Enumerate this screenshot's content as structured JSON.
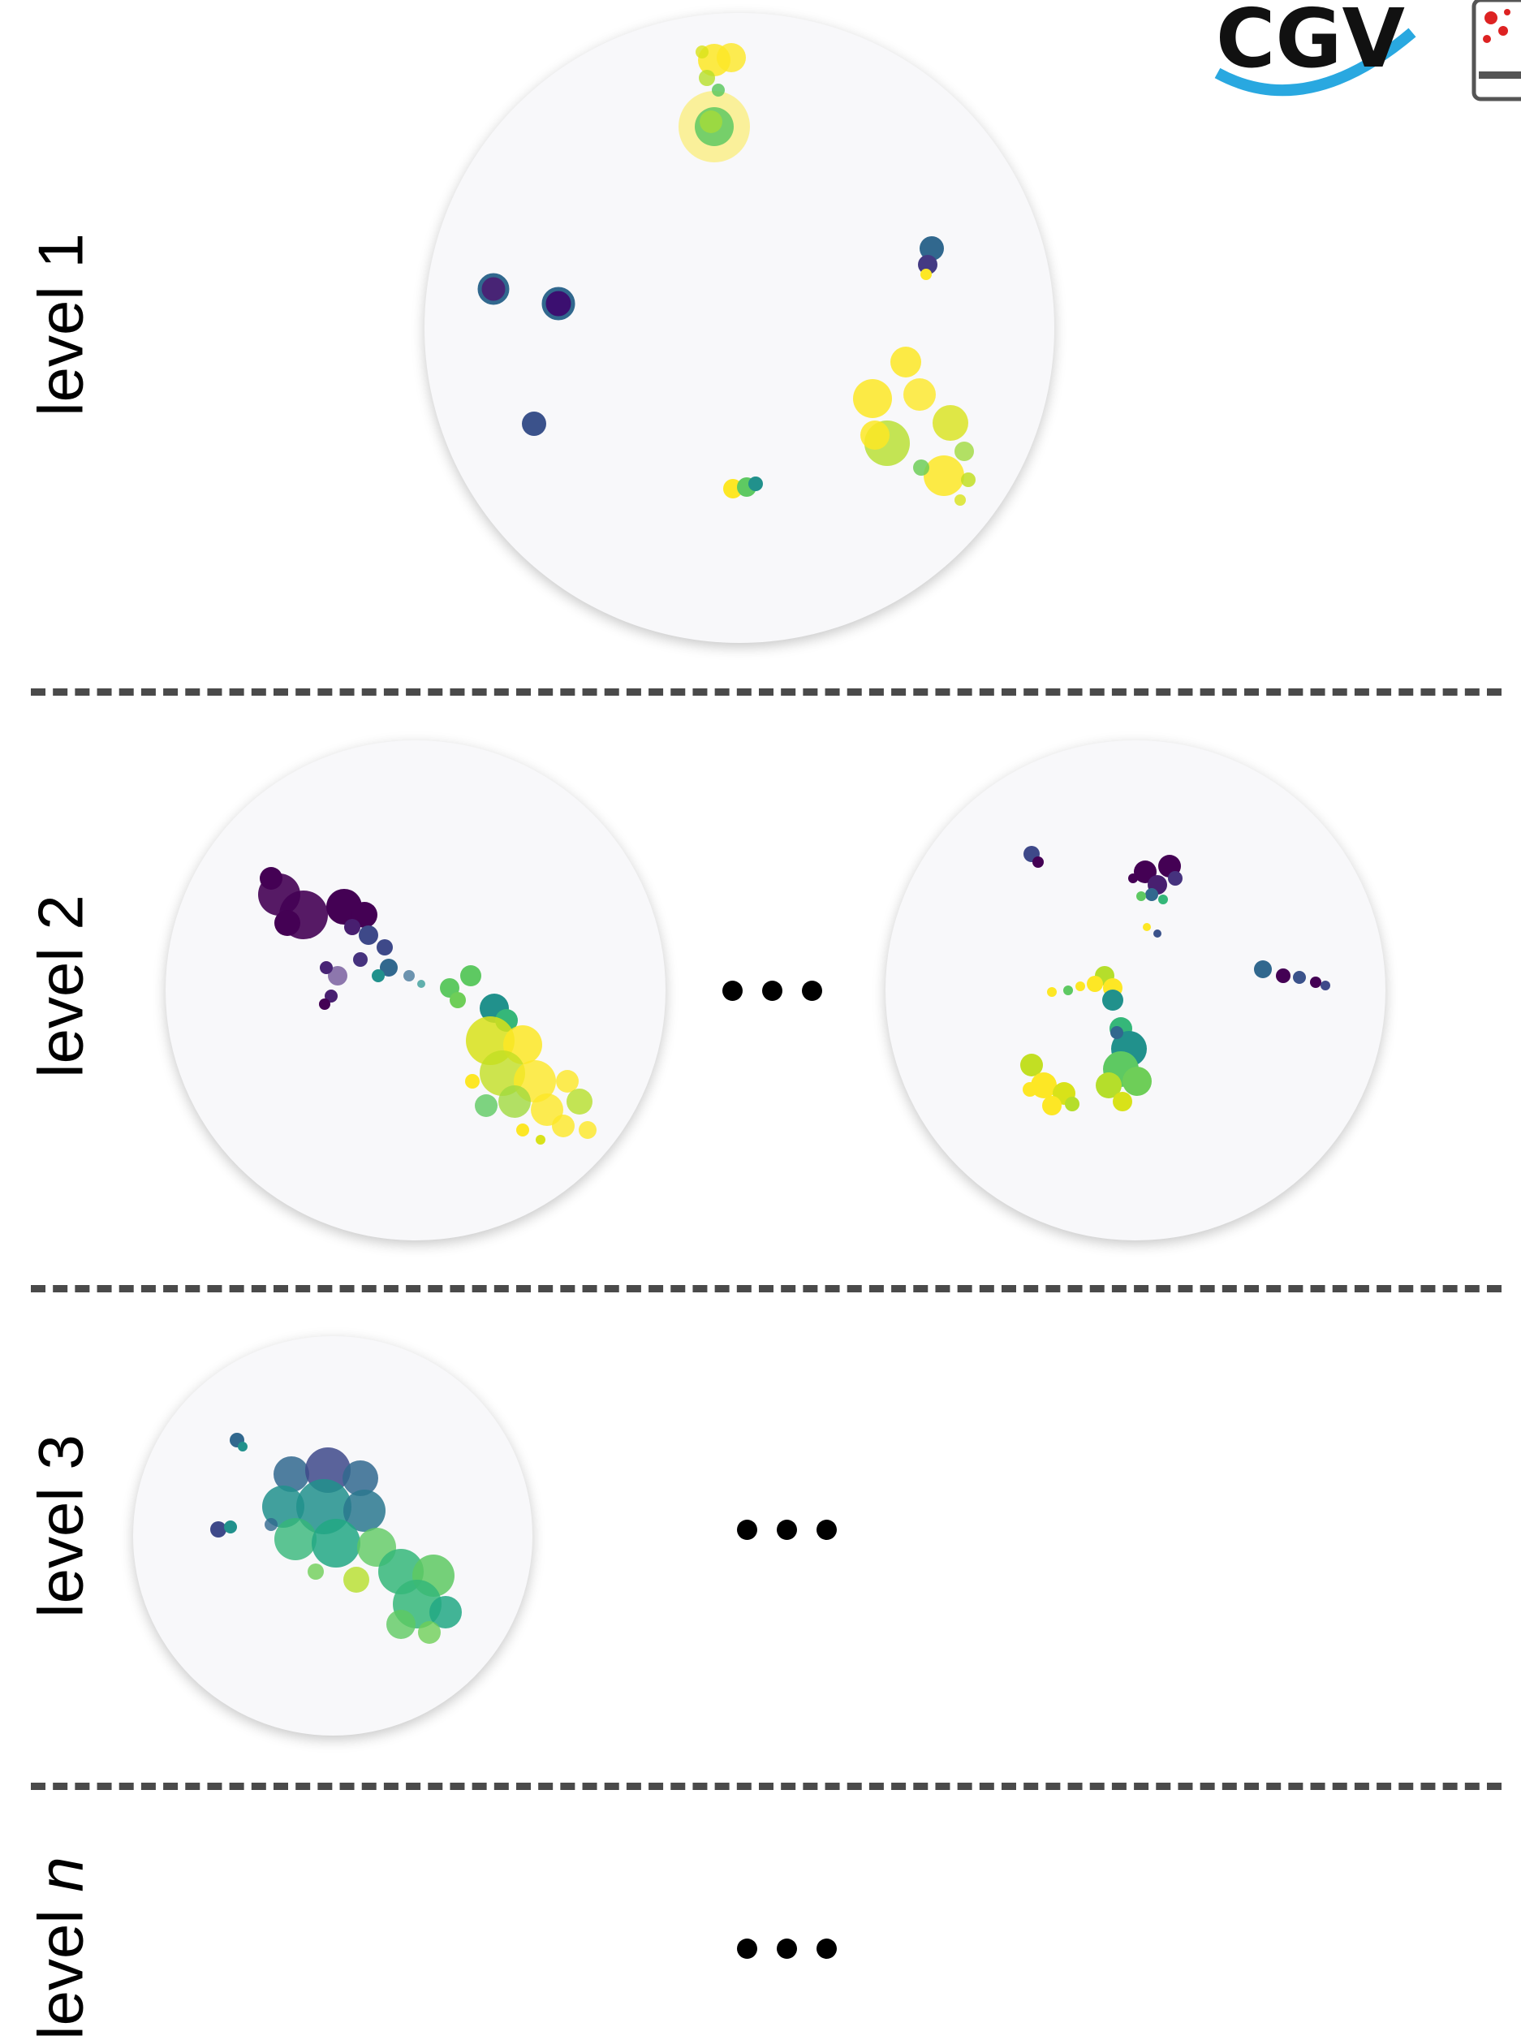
{
  "levels": [
    {
      "label_prefix": "level ",
      "label_suffix": "1"
    },
    {
      "label_prefix": "level ",
      "label_suffix": "2"
    },
    {
      "label_prefix": "level ",
      "label_suffix": "3"
    },
    {
      "label_prefix": "level ",
      "label_suffix": "n"
    }
  ],
  "logo_text": "CGV",
  "colors": {
    "background": "#ffffff",
    "panel_fill": "#f8f8fa",
    "divider": "#4a4a4a",
    "viridis_dark_purple": "#440154",
    "viridis_blue": "#31688e",
    "viridis_teal": "#21918c",
    "viridis_green": "#5ec962",
    "viridis_yellow": "#fde725",
    "logo_blue": "#29a8e0"
  }
}
